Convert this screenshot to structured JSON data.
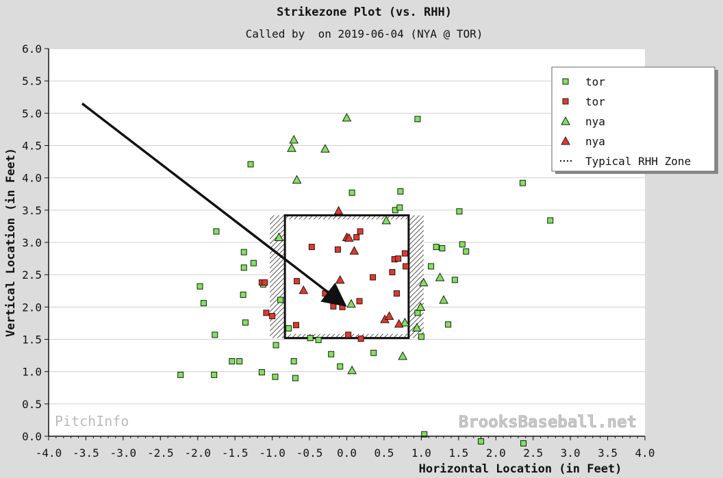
{
  "chart_data": {
    "type": "scatter",
    "title": "Strikezone Plot (vs. RHH)",
    "subtitle": "Called by  on 2019-06-04 (NYA @ TOR)",
    "xlabel": "Horizontal Location (in Feet)",
    "ylabel": "Vertical Location (in Feet)",
    "xlim": [
      -4.0,
      4.0
    ],
    "ylim": [
      0.0,
      6.0
    ],
    "xticks": [
      "-4.0",
      "-3.5",
      "-3.0",
      "-2.5",
      "-2.0",
      "-1.5",
      "-1.0",
      "-0.5",
      "0.0",
      "0.5",
      "1.0",
      "1.5",
      "2.0",
      "2.5",
      "3.0",
      "3.5",
      "4.0"
    ],
    "yticks": [
      "0.0",
      "0.5",
      "1.0",
      "1.5",
      "2.0",
      "2.5",
      "3.0",
      "3.5",
      "4.0",
      "4.5",
      "5.0",
      "5.5",
      "6.0"
    ],
    "grid": "horizontal",
    "legend_position": "top-right",
    "zone_label": "Typical RHH Zone",
    "strike_zone": {
      "x": [
        -0.83,
        0.83
      ],
      "y": [
        1.52,
        3.42
      ]
    },
    "arrow": {
      "from": [
        -3.55,
        5.15
      ],
      "to": [
        -0.05,
        2.05
      ]
    },
    "watermarks": {
      "left": "PitchInfo",
      "right": "BrooksBaseball.net"
    },
    "colors": {
      "green": "#7fe35a",
      "red": "#e8362b",
      "plot_bg": "#ffffff",
      "panel_bg": "#dcdcdc"
    },
    "series": [
      {
        "name": "tor",
        "marker": "square",
        "color": "green",
        "points": [
          [
            -1.29,
            4.21
          ],
          [
            -1.75,
            3.17
          ],
          [
            -1.38,
            2.85
          ],
          [
            -1.38,
            2.61
          ],
          [
            -1.25,
            2.68
          ],
          [
            -1.12,
            2.35
          ],
          [
            -1.97,
            2.32
          ],
          [
            -1.92,
            2.06
          ],
          [
            -1.39,
            2.19
          ],
          [
            -1.36,
            1.76
          ],
          [
            -1.77,
            1.57
          ],
          [
            -2.23,
            0.95
          ],
          [
            -1.78,
            0.95
          ],
          [
            -1.54,
            1.16
          ],
          [
            -1.44,
            1.16
          ],
          [
            -1.14,
            0.99
          ],
          [
            -0.96,
            0.92
          ],
          [
            -0.69,
            0.9
          ],
          [
            -0.71,
            1.16
          ],
          [
            -0.49,
            1.52
          ],
          [
            -0.38,
            1.49
          ],
          [
            -0.21,
            1.27
          ],
          [
            -0.09,
            1.08
          ],
          [
            -0.95,
            1.41
          ],
          [
            -0.89,
            2.11
          ],
          [
            -0.78,
            1.67
          ],
          [
            0.07,
            3.77
          ],
          [
            0.65,
            3.5
          ],
          [
            0.71,
            3.54
          ],
          [
            0.72,
            3.79
          ],
          [
            0.95,
            4.91
          ],
          [
            1.13,
            2.63
          ],
          [
            1.2,
            2.93
          ],
          [
            1.28,
            2.91
          ],
          [
            1.36,
            1.73
          ],
          [
            1.45,
            2.42
          ],
          [
            1.51,
            3.48
          ],
          [
            1.55,
            2.97
          ],
          [
            1.6,
            2.86
          ],
          [
            0.36,
            1.29
          ],
          [
            0.95,
            1.91
          ],
          [
            1.0,
            1.54
          ],
          [
            1.04,
            0.03
          ],
          [
            1.8,
            -0.08
          ],
          [
            2.36,
            3.92
          ],
          [
            2.37,
            -0.11
          ],
          [
            2.73,
            3.34
          ]
        ]
      },
      {
        "name": "tor",
        "marker": "square",
        "color": "red",
        "points": [
          [
            -0.47,
            2.93
          ],
          [
            -1.14,
            2.38
          ],
          [
            -1.1,
            2.38
          ],
          [
            -1.08,
            1.91
          ],
          [
            -1.0,
            1.86
          ],
          [
            -0.67,
            2.4
          ],
          [
            -0.68,
            1.72
          ],
          [
            -0.29,
            2.21
          ],
          [
            -0.18,
            2.01
          ],
          [
            -0.12,
            2.89
          ],
          [
            -0.06,
            2.0
          ],
          [
            0.02,
            1.57
          ],
          [
            0.13,
            3.08
          ],
          [
            0.18,
            3.17
          ],
          [
            0.17,
            2.09
          ],
          [
            0.19,
            1.51
          ],
          [
            0.35,
            2.46
          ],
          [
            0.61,
            2.54
          ],
          [
            0.64,
            2.74
          ],
          [
            0.67,
            2.21
          ],
          [
            0.69,
            2.75
          ],
          [
            0.78,
            2.83
          ],
          [
            0.79,
            2.63
          ]
        ]
      },
      {
        "name": "nya",
        "marker": "triangle",
        "color": "green",
        "points": [
          [
            0.0,
            4.93
          ],
          [
            -0.74,
            4.46
          ],
          [
            -0.71,
            4.59
          ],
          [
            -0.29,
            4.45
          ],
          [
            -0.67,
            3.97
          ],
          [
            -0.91,
            3.08
          ],
          [
            0.06,
            2.05
          ],
          [
            0.07,
            1.02
          ],
          [
            0.53,
            3.34
          ],
          [
            0.75,
            1.24
          ],
          [
            0.78,
            1.76
          ],
          [
            0.94,
            1.68
          ],
          [
            0.99,
            2.0
          ],
          [
            1.03,
            2.38
          ],
          [
            1.25,
            2.46
          ],
          [
            1.3,
            2.11
          ]
        ]
      },
      {
        "name": "nya",
        "marker": "triangle",
        "color": "red",
        "points": [
          [
            -0.11,
            3.49
          ],
          [
            -0.58,
            2.26
          ],
          [
            -0.09,
            2.42
          ],
          [
            0.0,
            3.08
          ],
          [
            0.03,
            3.07
          ],
          [
            0.1,
            2.87
          ],
          [
            0.51,
            1.81
          ],
          [
            0.57,
            1.86
          ],
          [
            0.7,
            1.74
          ]
        ]
      }
    ]
  }
}
